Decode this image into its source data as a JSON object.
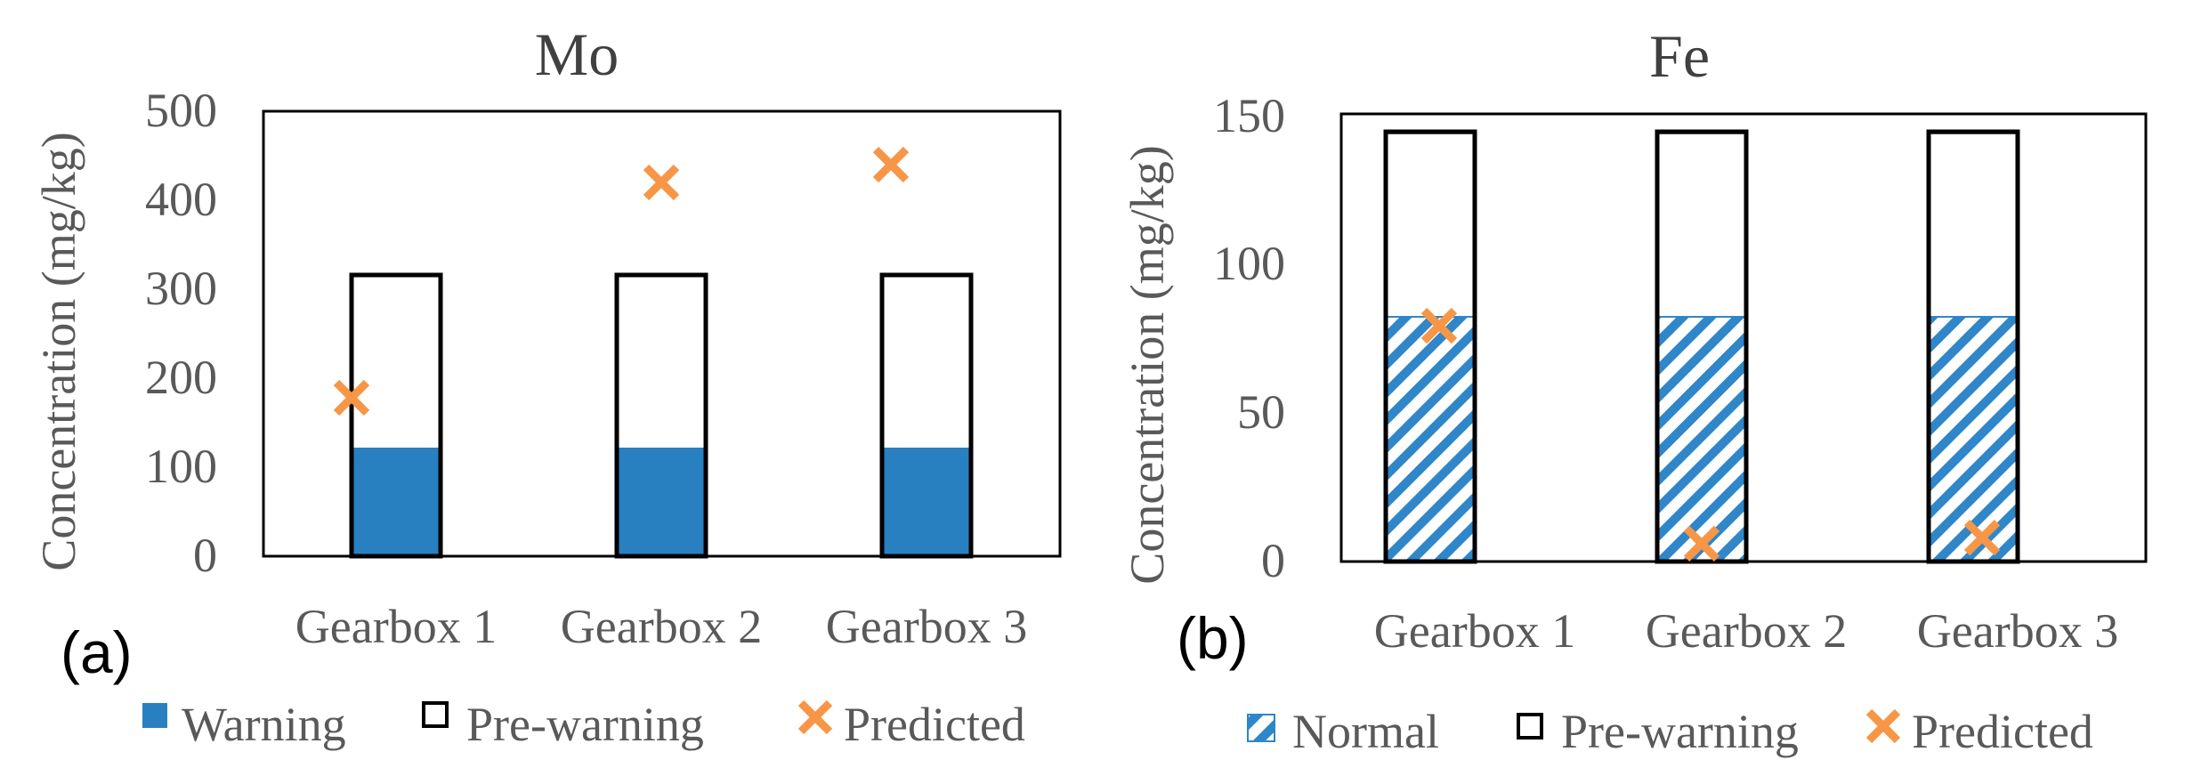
{
  "colors": {
    "warning": "#2980c1",
    "normal_hatch": "#2f86c8",
    "prewarning_edge": "#000000",
    "predicted": "#f79646",
    "axis": "#000000",
    "text": "#595959"
  },
  "chart_data": [
    {
      "type": "bar",
      "panel_label": "(a)",
      "title": "Mo",
      "xlabel": "",
      "ylabel": "Concentration (mg/kg)",
      "ylim": [
        0,
        500
      ],
      "yticks": [
        "0",
        "100",
        "200",
        "300",
        "400",
        "500"
      ],
      "categories": [
        "Gearbox 1",
        "Gearbox 2",
        "Gearbox 3"
      ],
      "series": [
        {
          "name": "Warning",
          "kind": "solid",
          "values": [
            122,
            122,
            122
          ]
        },
        {
          "name": "Pre-warning",
          "kind": "outline",
          "values": [
            316,
            316,
            316
          ]
        },
        {
          "name": "Predicted",
          "kind": "marker",
          "values": [
            178,
            420,
            440
          ]
        }
      ],
      "legend": [
        "Warning",
        "Pre-warning",
        "Predicted"
      ],
      "legend_position": "bottom",
      "grid": false
    },
    {
      "type": "bar",
      "panel_label": "(b)",
      "title": "Fe",
      "xlabel": "",
      "ylabel": "Concentration (mg/kg)",
      "ylim": [
        0,
        150
      ],
      "yticks": [
        "0",
        "50",
        "100",
        "150"
      ],
      "categories": [
        "Gearbox 1",
        "Gearbox 2",
        "Gearbox 3"
      ],
      "series": [
        {
          "name": "Normal",
          "kind": "hatched",
          "values": [
            82,
            82,
            82
          ]
        },
        {
          "name": "Pre-warning",
          "kind": "outline",
          "values": [
            144,
            144,
            144
          ]
        },
        {
          "name": "Predicted",
          "kind": "marker",
          "values": [
            79,
            6,
            8
          ]
        }
      ],
      "legend": [
        "Normal",
        "Pre-warning",
        "Predicted"
      ],
      "legend_position": "bottom",
      "grid": false
    }
  ]
}
